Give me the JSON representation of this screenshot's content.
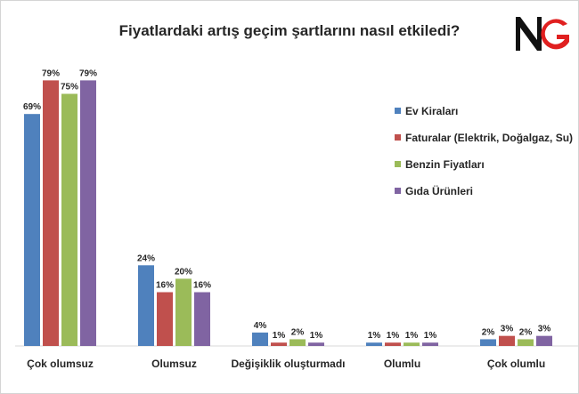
{
  "chart_data": {
    "type": "bar",
    "title": "Fiyatlardaki artış geçim şartlarını nasıl etkiledi?",
    "categories": [
      "Çok olumsuz",
      "Olumsuz",
      "Değişiklik oluşturmadı",
      "Olumlu",
      "Çok olumlu"
    ],
    "series": [
      {
        "name": "Ev Kiraları",
        "color": "#4f81bd",
        "values": [
          69,
          24,
          4,
          1,
          2
        ],
        "labels": [
          "69%",
          "24%",
          "4%",
          "1%",
          "2%"
        ]
      },
      {
        "name": "Faturalar (Elektrik, Doğalgaz, Su)",
        "color": "#c0504d",
        "values": [
          79,
          16,
          1,
          1,
          3
        ],
        "labels": [
          "79%",
          "16%",
          "1%",
          "1%",
          "3%"
        ]
      },
      {
        "name": "Benzin Fiyatları",
        "color": "#9bbb59",
        "values": [
          75,
          20,
          2,
          1,
          2
        ],
        "labels": [
          "75%",
          "20%",
          "2%",
          "1%",
          "2%"
        ]
      },
      {
        "name": "Gıda Ürünleri",
        "color": "#8064a2",
        "values": [
          79,
          16,
          1,
          1,
          3
        ],
        "labels": [
          "79%",
          "16%",
          "1%",
          "1%",
          "3%"
        ]
      }
    ],
    "ylim": [
      0,
      80
    ],
    "grid": false,
    "legend": "right"
  },
  "logo": {
    "text": "NG",
    "color_n": "#111111",
    "color_g": "#e02020",
    "icon": "ng-logo"
  }
}
